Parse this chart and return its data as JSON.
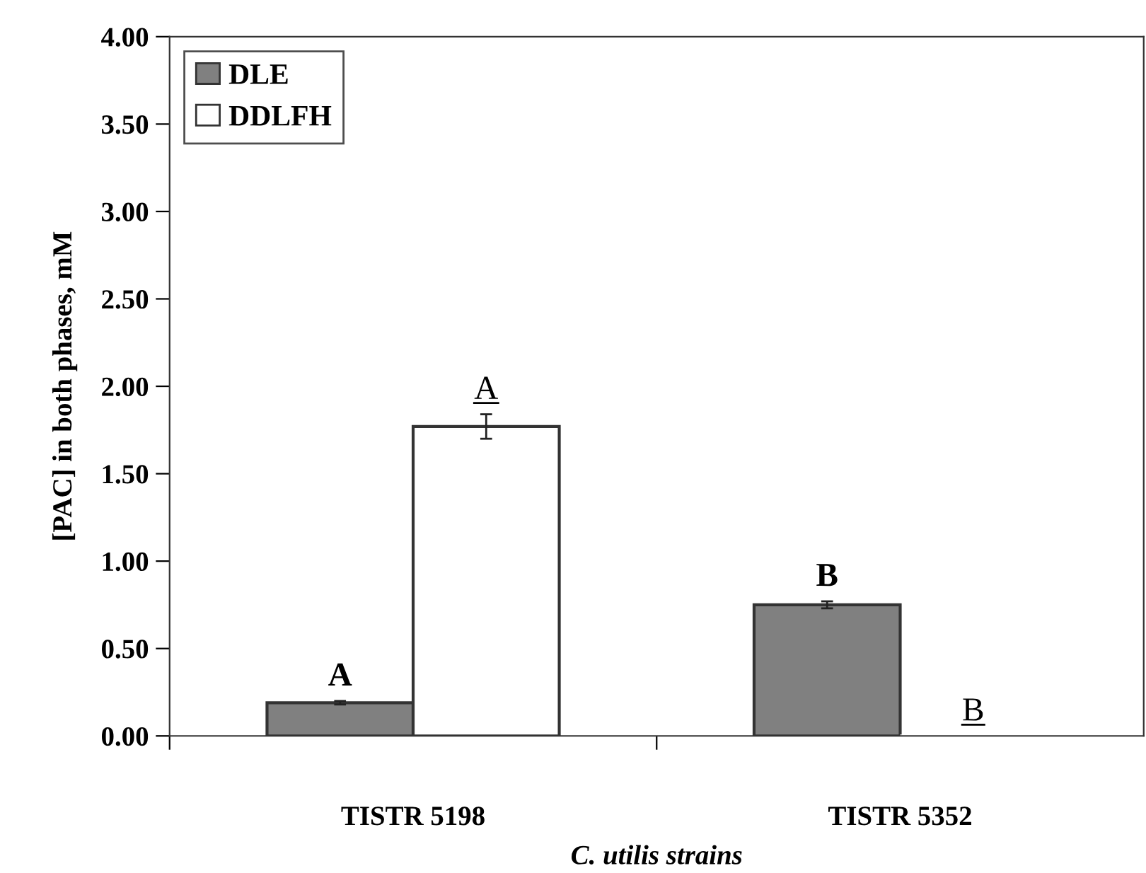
{
  "chart_data": {
    "type": "bar",
    "xlabel": "C. utilis strains",
    "ylabel": "[PAC] in both phases, mM",
    "categories": [
      "TISTR 5198",
      "TISTR 5352"
    ],
    "series": [
      {
        "name": "DLE",
        "color": "#808080",
        "values": [
          0.19,
          0.75
        ],
        "errors": [
          0.01,
          0.02
        ],
        "value_labels": [
          "A",
          "B"
        ]
      },
      {
        "name": "DDLFH",
        "color": "#ffffff",
        "values": [
          1.77,
          0
        ],
        "errors": [
          0.07,
          null
        ],
        "value_labels": [
          "A",
          "B"
        ]
      }
    ],
    "ylim": [
      0,
      4
    ],
    "yticks": [
      {
        "value": 0,
        "label": "0.00"
      },
      {
        "value": 0.5,
        "label": "0.50"
      },
      {
        "value": 1,
        "label": "1.00"
      },
      {
        "value": 1.5,
        "label": "1.50"
      },
      {
        "value": 2,
        "label": "2.00"
      },
      {
        "value": 2.5,
        "label": "2.50"
      },
      {
        "value": 3,
        "label": "3.00"
      },
      {
        "value": 3.5,
        "label": "3.50"
      },
      {
        "value": 4,
        "label": "4.00"
      }
    ],
    "legend": "top left",
    "grid": false
  }
}
